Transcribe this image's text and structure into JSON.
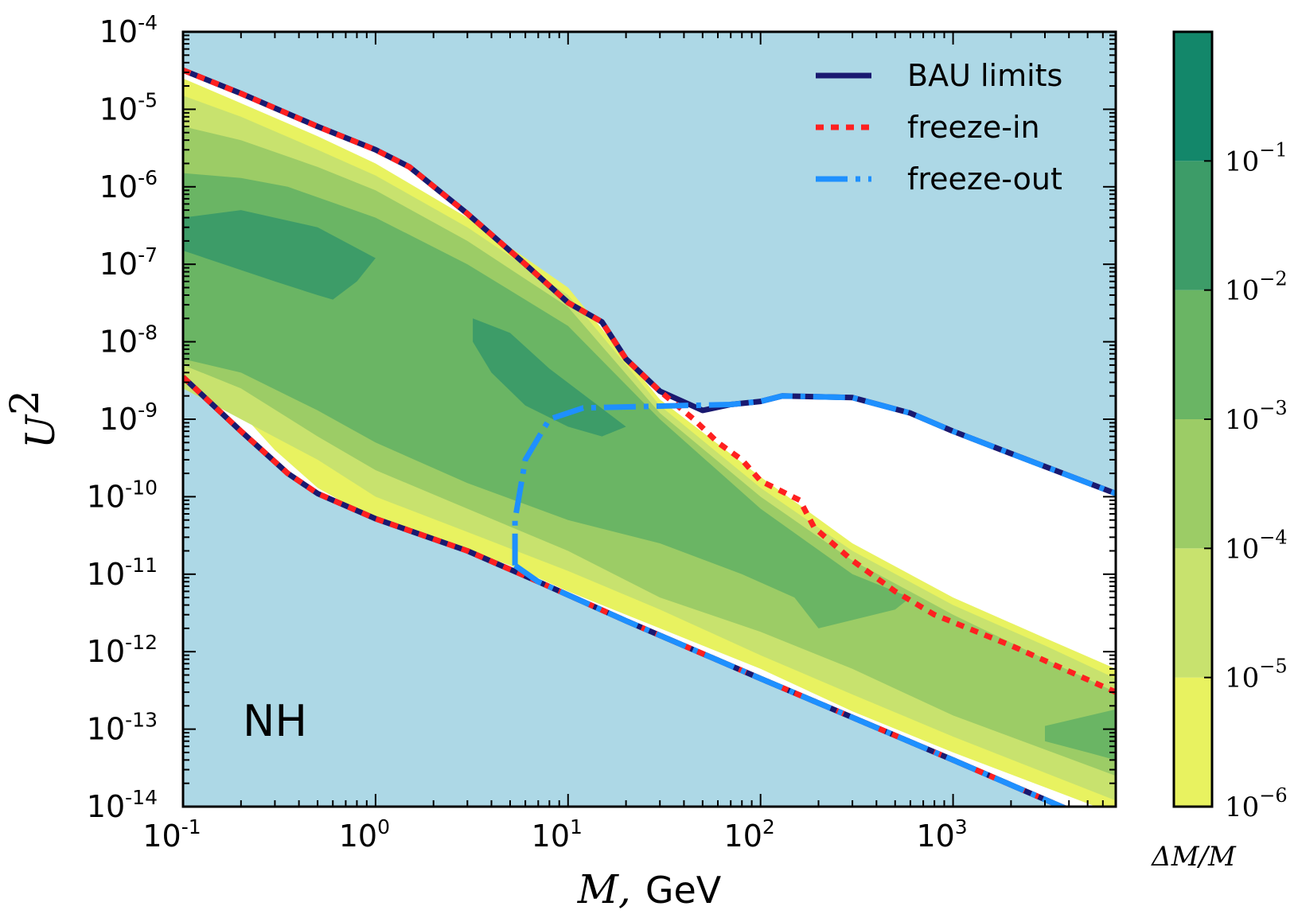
{
  "chart_data": {
    "type": "area",
    "xlabel_math": "M,",
    "xlabel_unit": "GeV",
    "ylabel_math": "U",
    "ylabel_sup": "2",
    "xscale": "log",
    "yscale": "log",
    "xlim": [
      0.1,
      7000
    ],
    "ylim": [
      1e-14,
      0.0001
    ],
    "grid": false,
    "legend_position": "top-right",
    "background_color": "#add8e6",
    "annotation": "NH",
    "x_ticks": [
      {
        "base": "10",
        "exp": "-1",
        "value": 0.1
      },
      {
        "base": "10",
        "exp": "0",
        "value": 1
      },
      {
        "base": "10",
        "exp": "1",
        "value": 10
      },
      {
        "base": "10",
        "exp": "2",
        "value": 100
      },
      {
        "base": "10",
        "exp": "3",
        "value": 1000
      }
    ],
    "y_ticks": [
      {
        "base": "10",
        "exp": "-4",
        "value": 0.0001
      },
      {
        "base": "10",
        "exp": "-5",
        "value": 1e-05
      },
      {
        "base": "10",
        "exp": "-6",
        "value": 1e-06
      },
      {
        "base": "10",
        "exp": "-7",
        "value": 1e-07
      },
      {
        "base": "10",
        "exp": "-8",
        "value": 1e-08
      },
      {
        "base": "10",
        "exp": "-9",
        "value": 1e-09
      },
      {
        "base": "10",
        "exp": "-10",
        "value": 1e-10
      },
      {
        "base": "10",
        "exp": "-11",
        "value": 1e-11
      },
      {
        "base": "10",
        "exp": "-12",
        "value": 1e-12
      },
      {
        "base": "10",
        "exp": "-13",
        "value": 1e-13
      },
      {
        "base": "10",
        "exp": "-14",
        "value": 1e-14
      }
    ],
    "series": [
      {
        "name": "BAU limits",
        "style": "solid",
        "color": "#191970",
        "segments": [
          [
            [
              0.1,
              3.2e-05
            ],
            [
              0.2,
              1.6e-05
            ],
            [
              0.5,
              6e-06
            ],
            [
              1,
              3e-06
            ],
            [
              1.5,
              1.8e-06
            ],
            [
              3,
              4.5e-07
            ],
            [
              6,
              1e-07
            ],
            [
              10,
              3.2e-08
            ],
            [
              15,
              1.8e-08
            ],
            [
              20,
              6e-09
            ],
            [
              30,
              2.3e-09
            ],
            [
              50,
              1.3e-09
            ],
            [
              70,
              1.55e-09
            ],
            [
              100,
              1.7e-09
            ],
            [
              130,
              2e-09
            ],
            [
              300,
              1.9e-09
            ],
            [
              600,
              1.2e-09
            ],
            [
              1000,
              7e-10
            ],
            [
              2000,
              3.6e-10
            ],
            [
              7000,
              1.1e-10
            ]
          ],
          [
            [
              0.1,
              3.5e-09
            ],
            [
              0.2,
              7e-10
            ],
            [
              0.35,
              2e-10
            ],
            [
              0.5,
              1.1e-10
            ],
            [
              1,
              5.2e-11
            ],
            [
              3,
              2e-11
            ],
            [
              7,
              8e-12
            ],
            [
              20,
              2.5e-12
            ],
            [
              100,
              4.5e-13
            ],
            [
              1000,
              4e-14
            ],
            [
              7000,
              5e-15
            ]
          ]
        ]
      },
      {
        "name": "freeze-in",
        "style": "dotted",
        "color": "#ff2020",
        "segments": [
          [
            [
              0.1,
              3.2e-05
            ],
            [
              0.2,
              1.6e-05
            ],
            [
              0.5,
              6e-06
            ],
            [
              1,
              3e-06
            ],
            [
              1.5,
              1.8e-06
            ],
            [
              3,
              4.5e-07
            ],
            [
              6,
              1e-07
            ],
            [
              10,
              3.2e-08
            ],
            [
              15,
              1.8e-08
            ],
            [
              20,
              6e-09
            ],
            [
              30,
              2.3e-09
            ],
            [
              45,
              1e-09
            ],
            [
              60,
              5e-10
            ],
            [
              80,
              3e-10
            ],
            [
              100,
              1.6e-10
            ],
            [
              160,
              9e-11
            ],
            [
              190,
              4e-11
            ],
            [
              300,
              1.5e-11
            ],
            [
              500,
              6e-12
            ],
            [
              800,
              3e-12
            ],
            [
              2000,
              1.2e-12
            ],
            [
              7000,
              3e-13
            ]
          ],
          [
            [
              0.1,
              3.5e-09
            ],
            [
              0.2,
              7e-10
            ],
            [
              0.35,
              2e-10
            ],
            [
              0.5,
              1.1e-10
            ],
            [
              1,
              5.2e-11
            ],
            [
              3,
              2e-11
            ],
            [
              7,
              8e-12
            ],
            [
              20,
              2.5e-12
            ],
            [
              100,
              4.5e-13
            ],
            [
              1000,
              4e-14
            ],
            [
              7000,
              5e-15
            ]
          ]
        ]
      },
      {
        "name": "freeze-out",
        "style": "dash-dot",
        "color": "#1e90ff",
        "segments": [
          [
            [
              5.3,
              1.3e-11
            ],
            [
              5.3,
              5e-11
            ],
            [
              6,
              3e-10
            ],
            [
              8,
              1e-09
            ],
            [
              12,
              1.4e-09
            ],
            [
              40,
              1.5e-09
            ],
            [
              70,
              1.55e-09
            ],
            [
              100,
              1.7e-09
            ],
            [
              130,
              2e-09
            ],
            [
              300,
              1.9e-09
            ],
            [
              600,
              1.2e-09
            ],
            [
              1000,
              7e-10
            ],
            [
              2000,
              3.6e-10
            ],
            [
              7000,
              1.1e-10
            ]
          ],
          [
            [
              5.3,
              1.3e-11
            ],
            [
              7,
              8e-12
            ],
            [
              20,
              2.5e-12
            ],
            [
              100,
              4.5e-13
            ],
            [
              1000,
              4e-14
            ],
            [
              7000,
              5e-15
            ]
          ]
        ]
      }
    ],
    "contour_bands": [
      {
        "level": "1e-6",
        "color": "#e8f260",
        "polygon": [
          [
            0.1,
            2.5e-05
          ],
          [
            0.2,
            1.2e-05
          ],
          [
            0.5,
            4.5e-06
          ],
          [
            1,
            2e-06
          ],
          [
            3,
            4e-07
          ],
          [
            10,
            5e-08
          ],
          [
            30,
            1.8e-09
          ],
          [
            100,
            1.8e-10
          ],
          [
            300,
            2.5e-11
          ],
          [
            1000,
            5e-12
          ],
          [
            3000,
            1.5e-12
          ],
          [
            7000,
            6e-13
          ],
          [
            7000,
            8e-15
          ],
          [
            1000,
            5e-14
          ],
          [
            300,
            1.7e-13
          ],
          [
            100,
            6e-13
          ],
          [
            30,
            2e-12
          ],
          [
            10,
            6e-12
          ],
          [
            5,
            1.3e-11
          ],
          [
            1,
            5e-11
          ],
          [
            0.5,
            1.3e-10
          ],
          [
            0.3,
            4e-10
          ],
          [
            0.1,
            8e-09
          ]
        ]
      },
      {
        "level": "1e-5",
        "color": "#c8e26e",
        "polygon": [
          [
            0.1,
            1.5e-05
          ],
          [
            0.2,
            8e-06
          ],
          [
            0.5,
            3e-06
          ],
          [
            1,
            1.4e-06
          ],
          [
            3,
            3e-07
          ],
          [
            10,
            4e-08
          ],
          [
            30,
            1.5e-09
          ],
          [
            100,
            1.3e-10
          ],
          [
            300,
            2e-11
          ],
          [
            1000,
            4e-12
          ],
          [
            3000,
            1.2e-12
          ],
          [
            7000,
            4.5e-13
          ],
          [
            7000,
            1.2e-14
          ],
          [
            1000,
            8e-14
          ],
          [
            300,
            2.8e-13
          ],
          [
            100,
            9e-13
          ],
          [
            30,
            3.5e-12
          ],
          [
            10,
            1.1e-11
          ],
          [
            3,
            3.5e-11
          ],
          [
            1,
            1e-10
          ],
          [
            0.5,
            3e-10
          ],
          [
            0.2,
            1e-09
          ],
          [
            0.1,
            2.5e-09
          ]
        ]
      },
      {
        "level": "1e-4",
        "color": "#9ccc66",
        "polygon": [
          [
            0.1,
            6e-06
          ],
          [
            0.2,
            4e-06
          ],
          [
            0.5,
            1.8e-06
          ],
          [
            1,
            9e-07
          ],
          [
            3,
            2e-07
          ],
          [
            10,
            2.8e-08
          ],
          [
            30,
            1.2e-09
          ],
          [
            100,
            1e-10
          ],
          [
            300,
            1.5e-11
          ],
          [
            1000,
            3e-12
          ],
          [
            3000,
            8e-13
          ],
          [
            7000,
            3e-13
          ],
          [
            7000,
            2.5e-14
          ],
          [
            1000,
            1.5e-13
          ],
          [
            300,
            6e-13
          ],
          [
            100,
            1.8e-12
          ],
          [
            30,
            5e-12
          ],
          [
            10,
            2e-11
          ],
          [
            3,
            7e-11
          ],
          [
            1,
            2.2e-10
          ],
          [
            0.5,
            6e-10
          ],
          [
            0.2,
            2.5e-09
          ],
          [
            0.1,
            5e-09
          ]
        ]
      },
      {
        "level": "1e-3",
        "color": "#6ab564",
        "polygon": [
          [
            0.1,
            1.5e-06
          ],
          [
            0.2,
            1.3e-06
          ],
          [
            0.35,
            1e-06
          ],
          [
            1,
            4e-07
          ],
          [
            3,
            1e-07
          ],
          [
            10,
            1.6e-08
          ],
          [
            30,
            1e-09
          ],
          [
            100,
            7e-11
          ],
          [
            300,
            1e-11
          ],
          [
            600,
            5e-12
          ],
          [
            500,
            3.5e-12
          ],
          [
            200,
            2e-12
          ],
          [
            150,
            5e-12
          ],
          [
            80,
            1e-11
          ],
          [
            30,
            2.5e-11
          ],
          [
            10,
            5e-11
          ],
          [
            3,
            1.5e-10
          ],
          [
            1,
            5e-10
          ],
          [
            0.5,
            1.3e-09
          ],
          [
            0.2,
            4e-09
          ],
          [
            0.1,
            6e-09
          ]
        ]
      },
      {
        "level": "1e-3b",
        "color": "#6ab564",
        "polygon": [
          [
            3000,
            1.1e-13
          ],
          [
            7000,
            1.8e-13
          ],
          [
            7000,
            4e-14
          ],
          [
            5000,
            5e-14
          ],
          [
            3000,
            7e-14
          ]
        ]
      },
      {
        "level": "1e-2",
        "color": "#3d9c68",
        "polygon": [
          [
            0.1,
            4e-07
          ],
          [
            0.2,
            5e-07
          ],
          [
            0.5,
            3e-07
          ],
          [
            1,
            1.2e-07
          ],
          [
            0.8,
            6e-08
          ],
          [
            0.6,
            3.5e-08
          ],
          [
            0.5,
            4e-08
          ],
          [
            0.3,
            6e-08
          ],
          [
            0.1,
            1.5e-07
          ]
        ]
      },
      {
        "level": "1e-2b",
        "color": "#3d9c68",
        "polygon": [
          [
            3.2,
            2e-08
          ],
          [
            5,
            1.3e-08
          ],
          [
            8,
            4.5e-09
          ],
          [
            13,
            1.8e-09
          ],
          [
            20,
            8e-10
          ],
          [
            15,
            6e-10
          ],
          [
            10,
            8e-10
          ],
          [
            6,
            1.5e-09
          ],
          [
            4,
            4e-09
          ],
          [
            3.2,
            1e-08
          ]
        ]
      }
    ],
    "colorbar": {
      "label_math": "ΔM/M",
      "scale": "log",
      "levels": [
        "1e-6",
        "1e-5",
        "1e-4",
        "1e-3",
        "1e-2",
        "1e-1"
      ],
      "colors": [
        "#e8f260",
        "#c8e26e",
        "#9ccc66",
        "#6ab564",
        "#3d9c68",
        "#13876a"
      ],
      "tick_labels": [
        {
          "base": "10",
          "exp": "−1"
        },
        {
          "base": "10",
          "exp": "−2"
        },
        {
          "base": "10",
          "exp": "−3"
        },
        {
          "base": "10",
          "exp": "−4"
        },
        {
          "base": "10",
          "exp": "−5"
        },
        {
          "base": "10",
          "exp": "−6"
        }
      ]
    }
  }
}
